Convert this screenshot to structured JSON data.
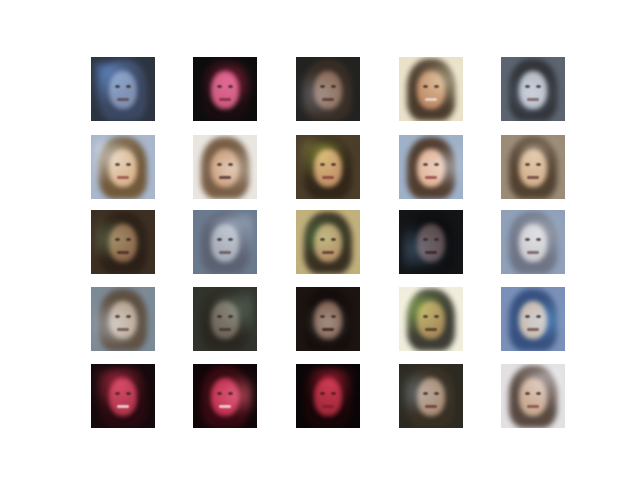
{
  "figure": {
    "rows": 5,
    "cols": 5,
    "tiles": [
      {
        "bg": "#2c3440",
        "hair": "#3d4a66",
        "face": "#7e8fb0",
        "mouth": "#5b3b3b",
        "streak": "#4f8fff"
      },
      {
        "bg": "#0c0c0c",
        "hair": "#1a0d10",
        "face": "#c75a7c",
        "mouth": "#7a1f3a",
        "streak": "#ff2a60"
      },
      {
        "bg": "#222220",
        "hair": "#3a2e25",
        "face": "#8a6a56",
        "mouth": "#4a2a22",
        "streak": "#6b7a8f"
      },
      {
        "bg": "#e9e1c8",
        "hair": "#3a2a1c",
        "face": "#c08a66",
        "mouth": "#f0f0f0",
        "streak": "#f3e6b0"
      },
      {
        "bg": "#5b6470",
        "hair": "#2d2f33",
        "face": "#b2b6be",
        "mouth": "#6b4a4a",
        "streak": "#a0c4ff"
      },
      {
        "bg": "#a9b7cc",
        "hair": "#6b4f2a",
        "face": "#d8b48e",
        "mouth": "#8c3a3a",
        "streak": "#ffffff"
      },
      {
        "bg": "#e9e5df",
        "hair": "#6b4f34",
        "face": "#c89a78",
        "mouth": "#3a1c1c",
        "streak": "#f7f1e8"
      },
      {
        "bg": "#4b3d2a",
        "hair": "#2f2418",
        "face": "#c29068",
        "mouth": "#7a2c2c",
        "streak": "#b6c93b"
      },
      {
        "bg": "#9fb1c8",
        "hair": "#4a3220",
        "face": "#e0b296",
        "mouth": "#8a3030",
        "streak": "#d9e6f5"
      },
      {
        "bg": "#9b8c78",
        "hair": "#4b3a2a",
        "face": "#d2b08c",
        "mouth": "#5b2a2a",
        "streak": "#c9b7a0"
      },
      {
        "bg": "#3d2f22",
        "hair": "#2a1f16",
        "face": "#8a6448",
        "mouth": "#3d1e1e",
        "streak": "#6a8a5a"
      },
      {
        "bg": "#6a7a8e",
        "hair": "#5a6070",
        "face": "#a7adb8",
        "mouth": "#5a4040",
        "streak": "#a6bde0"
      },
      {
        "bg": "#c0b07c",
        "hair": "#2a2218",
        "face": "#b48a66",
        "mouth": "#4a2626",
        "streak": "#47d15b"
      },
      {
        "bg": "#121416",
        "hair": "#0e0f12",
        "face": "#5a4a4a",
        "mouth": "#301818",
        "streak": "#4a6a8a"
      },
      {
        "bg": "#8fa0b8",
        "hair": "#6b7080",
        "face": "#c8c8cc",
        "mouth": "#604444",
        "streak": "#dfe7f5"
      },
      {
        "bg": "#7c8a96",
        "hair": "#5a4a3a",
        "face": "#b4a28e",
        "mouth": "#5a3a3a",
        "streak": "#c8d8f0"
      },
      {
        "bg": "#30342c",
        "hair": "#2a2620",
        "face": "#6e6458",
        "mouth": "#3a2828",
        "streak": "#5a7a6a"
      },
      {
        "bg": "#1c1410",
        "hair": "#120c0a",
        "face": "#7a5a4a",
        "mouth": "#2a1010",
        "streak": "#a0a0a0"
      },
      {
        "bg": "#f0eddc",
        "hair": "#2a2a22",
        "face": "#a88a5a",
        "mouth": "#3a2a20",
        "streak": "#9adc3c"
      },
      {
        "bg": "#7a90b8",
        "hair": "#2f4a7a",
        "face": "#c8b8a8",
        "mouth": "#5a3a3a",
        "streak": "#4fb0ff"
      },
      {
        "bg": "#14090c",
        "hair": "#2a0a10",
        "face": "#b0344a",
        "mouth": "#ffffff",
        "streak": "#ff3a5a"
      },
      {
        "bg": "#100608",
        "hair": "#3a0a12",
        "face": "#c03050",
        "mouth": "#ffffff",
        "streak": "#ff6a7a"
      },
      {
        "bg": "#0a0506",
        "hair": "#1a0608",
        "face": "#a02838",
        "mouth": "#7a1a2a",
        "streak": "#ff2a48"
      },
      {
        "bg": "#2c2a22",
        "hair": "#3a3024",
        "face": "#a88a72",
        "mouth": "#5a2a2a",
        "streak": "#6a8aa0"
      },
      {
        "bg": "#e2e0e2",
        "hair": "#4a3a30",
        "face": "#c8a890",
        "mouth": "#7a3a3a",
        "streak": "#f0e6f0"
      }
    ]
  }
}
